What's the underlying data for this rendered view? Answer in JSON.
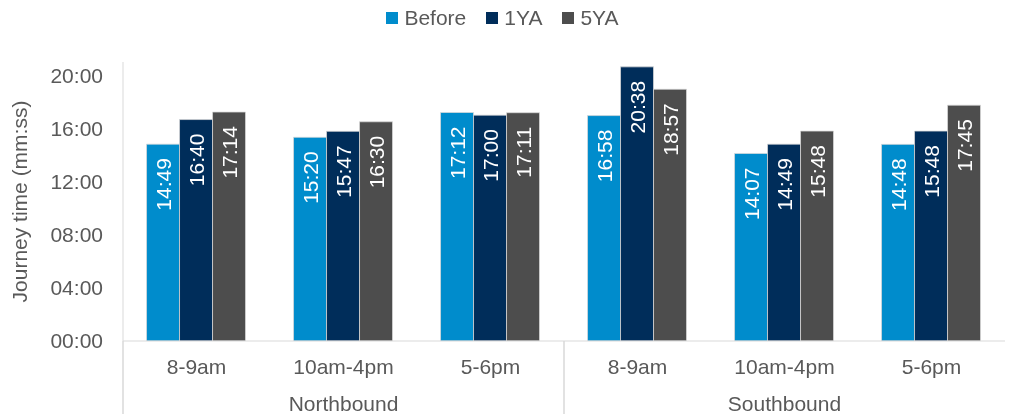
{
  "chart_data": {
    "type": "bar",
    "ylabel": "Journey time (mm:ss)",
    "categories": [
      "8-9am",
      "10am-4pm",
      "5-6pm",
      "8-9am",
      "10am-4pm",
      "5-6pm"
    ],
    "annotations": [
      "Northbound",
      "Southbound"
    ],
    "series": [
      {
        "name": "Before",
        "color": "#008ccc",
        "values": [
          889,
          920,
          1032,
          1018,
          847,
          888
        ],
        "value_labels": [
          "14:49",
          "15:20",
          "17:12",
          "16:58",
          "14:07",
          "14:48"
        ]
      },
      {
        "name": "1YA",
        "color": "#002d5a",
        "values": [
          1000,
          947,
          1020,
          1238,
          889,
          948
        ],
        "value_labels": [
          "16:40",
          "15:47",
          "17:00",
          "20:38",
          "14:49",
          "15:48"
        ]
      },
      {
        "name": "5YA",
        "color": "#4d4d4d",
        "values": [
          1034,
          990,
          1031,
          1137,
          948,
          1065
        ],
        "value_labels": [
          "17:14",
          "16:30",
          "17:11",
          "18:57",
          "15:48",
          "17:45"
        ]
      }
    ],
    "ylim": [
      0,
      1260
    ],
    "yticks": [
      {
        "value": 0,
        "label": "00:00"
      },
      {
        "value": 240,
        "label": "04:00"
      },
      {
        "value": 480,
        "label": "08:00"
      },
      {
        "value": 720,
        "label": "12:00"
      },
      {
        "value": 960,
        "label": "16:00"
      },
      {
        "value": 1200,
        "label": "20:00"
      }
    ],
    "legend": "top"
  }
}
